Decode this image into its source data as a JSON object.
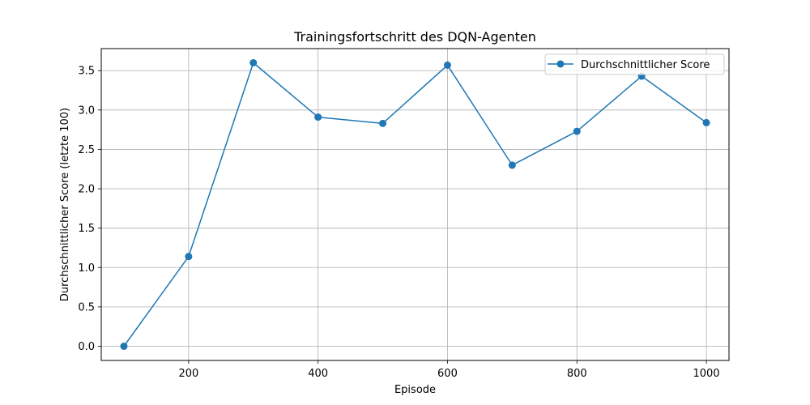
{
  "chart_data": {
    "type": "line",
    "title": "Trainingsfortschritt des DQN-Agenten",
    "xlabel": "Episode",
    "ylabel": "Durchschnittlicher Score (letzte 100)",
    "xlim": [
      65,
      1035
    ],
    "ylim": [
      -0.18,
      3.78
    ],
    "xticks": [
      200,
      400,
      600,
      800,
      1000
    ],
    "yticks": [
      0.0,
      0.5,
      1.0,
      1.5,
      2.0,
      2.5,
      3.0,
      3.5
    ],
    "grid": true,
    "legend_position": "top-right",
    "x": [
      100,
      200,
      300,
      400,
      500,
      600,
      700,
      800,
      900,
      1000
    ],
    "series": [
      {
        "name": "Durchschnittlicher Score",
        "color": "#1f77b4",
        "marker": "circle",
        "values": [
          0.0,
          1.14,
          3.6,
          2.91,
          2.83,
          3.57,
          2.3,
          2.73,
          3.43,
          2.84
        ]
      }
    ]
  }
}
